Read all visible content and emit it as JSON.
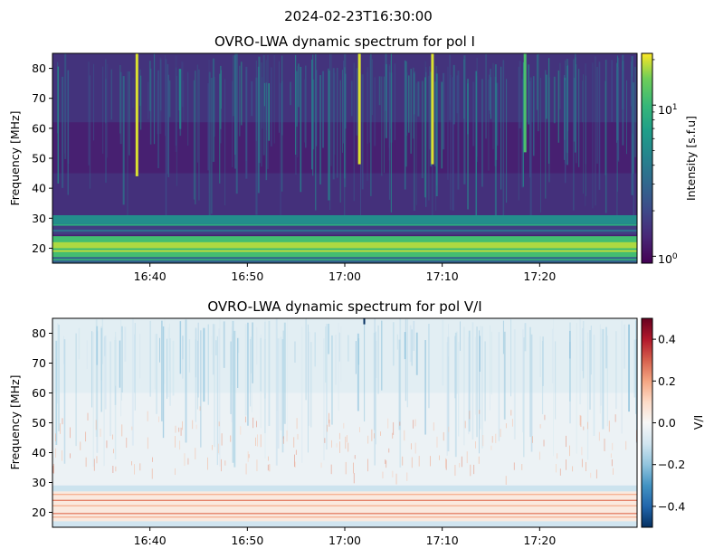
{
  "chart_data": {
    "suptitle": "2024-02-23T16:30:00",
    "panels": [
      {
        "type": "heatmap",
        "title": "OVRO-LWA dynamic spectrum for pol I",
        "ylabel": "Frequency [MHz]",
        "xlabel": "",
        "x_time_range": [
          "16:30",
          "17:30"
        ],
        "x_ticks": [
          "16:40",
          "16:50",
          "17:00",
          "17:10",
          "17:20"
        ],
        "y_range": [
          15,
          85
        ],
        "y_ticks": [
          "20",
          "30",
          "40",
          "50",
          "60",
          "70",
          "80"
        ],
        "colormap": "viridis",
        "color_scale": "log",
        "color_range": [
          0.9,
          22
        ],
        "colorbar_label": "Intensity [s.f.u]",
        "colorbar_ticks": [
          "10^1",
          "10^0"
        ],
        "features": {
          "bright_low_band_mhz": [
            17,
            24
          ],
          "dark_gap_mhz": [
            24.5,
            27.5
          ],
          "bursts": [
            {
              "time": "16:38:40",
              "freq_mhz": [
                44,
                85
              ],
              "strength": "high"
            },
            {
              "time": "17:01:30",
              "freq_mhz": [
                48,
                85
              ],
              "strength": "high"
            },
            {
              "time": "17:09:00",
              "freq_mhz": [
                48,
                85
              ],
              "strength": "high"
            },
            {
              "time": "17:18:30",
              "freq_mhz": [
                52,
                85
              ],
              "strength": "medium"
            }
          ]
        }
      },
      {
        "type": "heatmap",
        "title": "OVRO-LWA dynamic spectrum for pol V/I",
        "ylabel": "Frequency [MHz]",
        "xlabel": "",
        "x_time_range": [
          "16:30",
          "17:30"
        ],
        "x_ticks": [
          "16:40",
          "16:50",
          "17:00",
          "17:10",
          "17:20"
        ],
        "y_range": [
          15,
          85
        ],
        "y_ticks": [
          "20",
          "30",
          "40",
          "50",
          "60",
          "70",
          "80"
        ],
        "colormap": "RdBu_r",
        "color_range": [
          -0.5,
          0.5
        ],
        "colorbar_label": "V/I",
        "colorbar_ticks": [
          "0.4",
          "0.2",
          "0.0",
          "−0.2",
          "−0.4"
        ]
      }
    ]
  }
}
